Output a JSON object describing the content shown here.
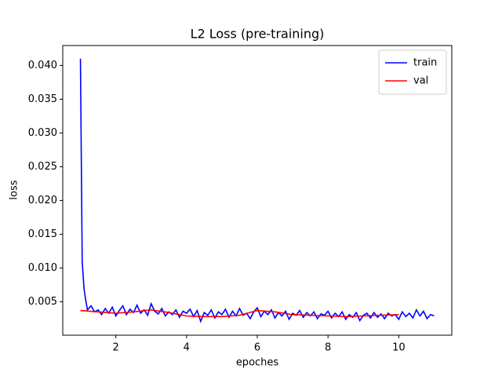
{
  "chart_data": {
    "type": "line",
    "title": "L2 Loss (pre-training)",
    "xlabel": "epoches",
    "ylabel": "loss",
    "xlim": [
      0.5,
      11.5
    ],
    "xticks": [
      2,
      4,
      6,
      8,
      10
    ],
    "ylim": [
      5e-05,
      0.04295
    ],
    "yticks": [
      {
        "value": 0.005,
        "label": "0.005"
      },
      {
        "value": 0.01,
        "label": "0.010"
      },
      {
        "value": 0.015,
        "label": "0.015"
      },
      {
        "value": 0.02,
        "label": "0.020"
      },
      {
        "value": 0.025,
        "label": "0.025"
      },
      {
        "value": 0.03,
        "label": "0.030"
      },
      {
        "value": 0.035,
        "label": "0.035"
      },
      {
        "value": 0.04,
        "label": "0.040"
      }
    ],
    "legend": "upper right",
    "series": [
      {
        "name": "train",
        "color": "#0000ff",
        "x": [
          1,
          1.05,
          1.1,
          1.15,
          1.2,
          1.3,
          1.4,
          1.5,
          1.6,
          1.7,
          1.8,
          1.9,
          2.0,
          2.1,
          2.2,
          2.3,
          2.4,
          2.5,
          2.6,
          2.7,
          2.8,
          2.9,
          3.0,
          3.1,
          3.2,
          3.3,
          3.4,
          3.5,
          3.6,
          3.7,
          3.8,
          3.9,
          4.0,
          4.1,
          4.2,
          4.3,
          4.4,
          4.5,
          4.6,
          4.7,
          4.8,
          4.9,
          5.0,
          5.1,
          5.2,
          5.3,
          5.4,
          5.5,
          5.6,
          5.7,
          5.8,
          5.9,
          6.0,
          6.1,
          6.2,
          6.3,
          6.4,
          6.5,
          6.6,
          6.7,
          6.8,
          6.9,
          7.0,
          7.1,
          7.2,
          7.3,
          7.4,
          7.5,
          7.6,
          7.7,
          7.8,
          7.9,
          8.0,
          8.1,
          8.2,
          8.3,
          8.4,
          8.5,
          8.6,
          8.7,
          8.8,
          8.9,
          9.0,
          9.1,
          9.2,
          9.3,
          9.4,
          9.5,
          9.6,
          9.7,
          9.8,
          9.9,
          10.0,
          10.1,
          10.2,
          10.3,
          10.4,
          10.5,
          10.6,
          10.7,
          10.8,
          10.9,
          11.0
        ],
        "values": [
          0.041,
          0.011,
          0.007,
          0.0052,
          0.0038,
          0.0044,
          0.0035,
          0.0038,
          0.0031,
          0.004,
          0.0033,
          0.0042,
          0.0029,
          0.0037,
          0.0044,
          0.0031,
          0.0039,
          0.0034,
          0.0045,
          0.0033,
          0.0038,
          0.003,
          0.0047,
          0.0036,
          0.0032,
          0.004,
          0.0029,
          0.0035,
          0.0031,
          0.0038,
          0.0027,
          0.0036,
          0.0033,
          0.0039,
          0.0028,
          0.0037,
          0.0021,
          0.0034,
          0.003,
          0.0038,
          0.0026,
          0.0035,
          0.0031,
          0.0039,
          0.0027,
          0.0036,
          0.0029,
          0.004,
          0.003,
          0.0033,
          0.0025,
          0.0035,
          0.0041,
          0.0028,
          0.0036,
          0.0031,
          0.0038,
          0.0026,
          0.0034,
          0.0029,
          0.0036,
          0.0024,
          0.0033,
          0.003,
          0.0037,
          0.0027,
          0.0034,
          0.0029,
          0.0035,
          0.0025,
          0.0032,
          0.003,
          0.0036,
          0.0026,
          0.0033,
          0.0028,
          0.0035,
          0.0024,
          0.0031,
          0.0027,
          0.0034,
          0.0022,
          0.003,
          0.0033,
          0.0026,
          0.0034,
          0.0027,
          0.0032,
          0.0025,
          0.0033,
          0.0029,
          0.0031,
          0.0024,
          0.0035,
          0.0028,
          0.0033,
          0.0026,
          0.0038,
          0.0029,
          0.0036,
          0.0025,
          0.0031,
          0.0029
        ]
      },
      {
        "name": "val",
        "color": "#ff0000",
        "x": [
          1,
          1.5,
          2,
          2.5,
          3,
          3.5,
          4,
          4.5,
          5,
          5.5,
          6,
          6.5,
          7,
          7.5,
          8,
          8.5,
          9,
          9.5,
          10
        ],
        "values": [
          0.0037,
          0.0035,
          0.0033,
          0.0035,
          0.0038,
          0.0034,
          0.0029,
          0.0028,
          0.0028,
          0.003,
          0.0037,
          0.0035,
          0.0031,
          0.003,
          0.0029,
          0.0028,
          0.0029,
          0.003,
          0.0031
        ]
      }
    ]
  }
}
